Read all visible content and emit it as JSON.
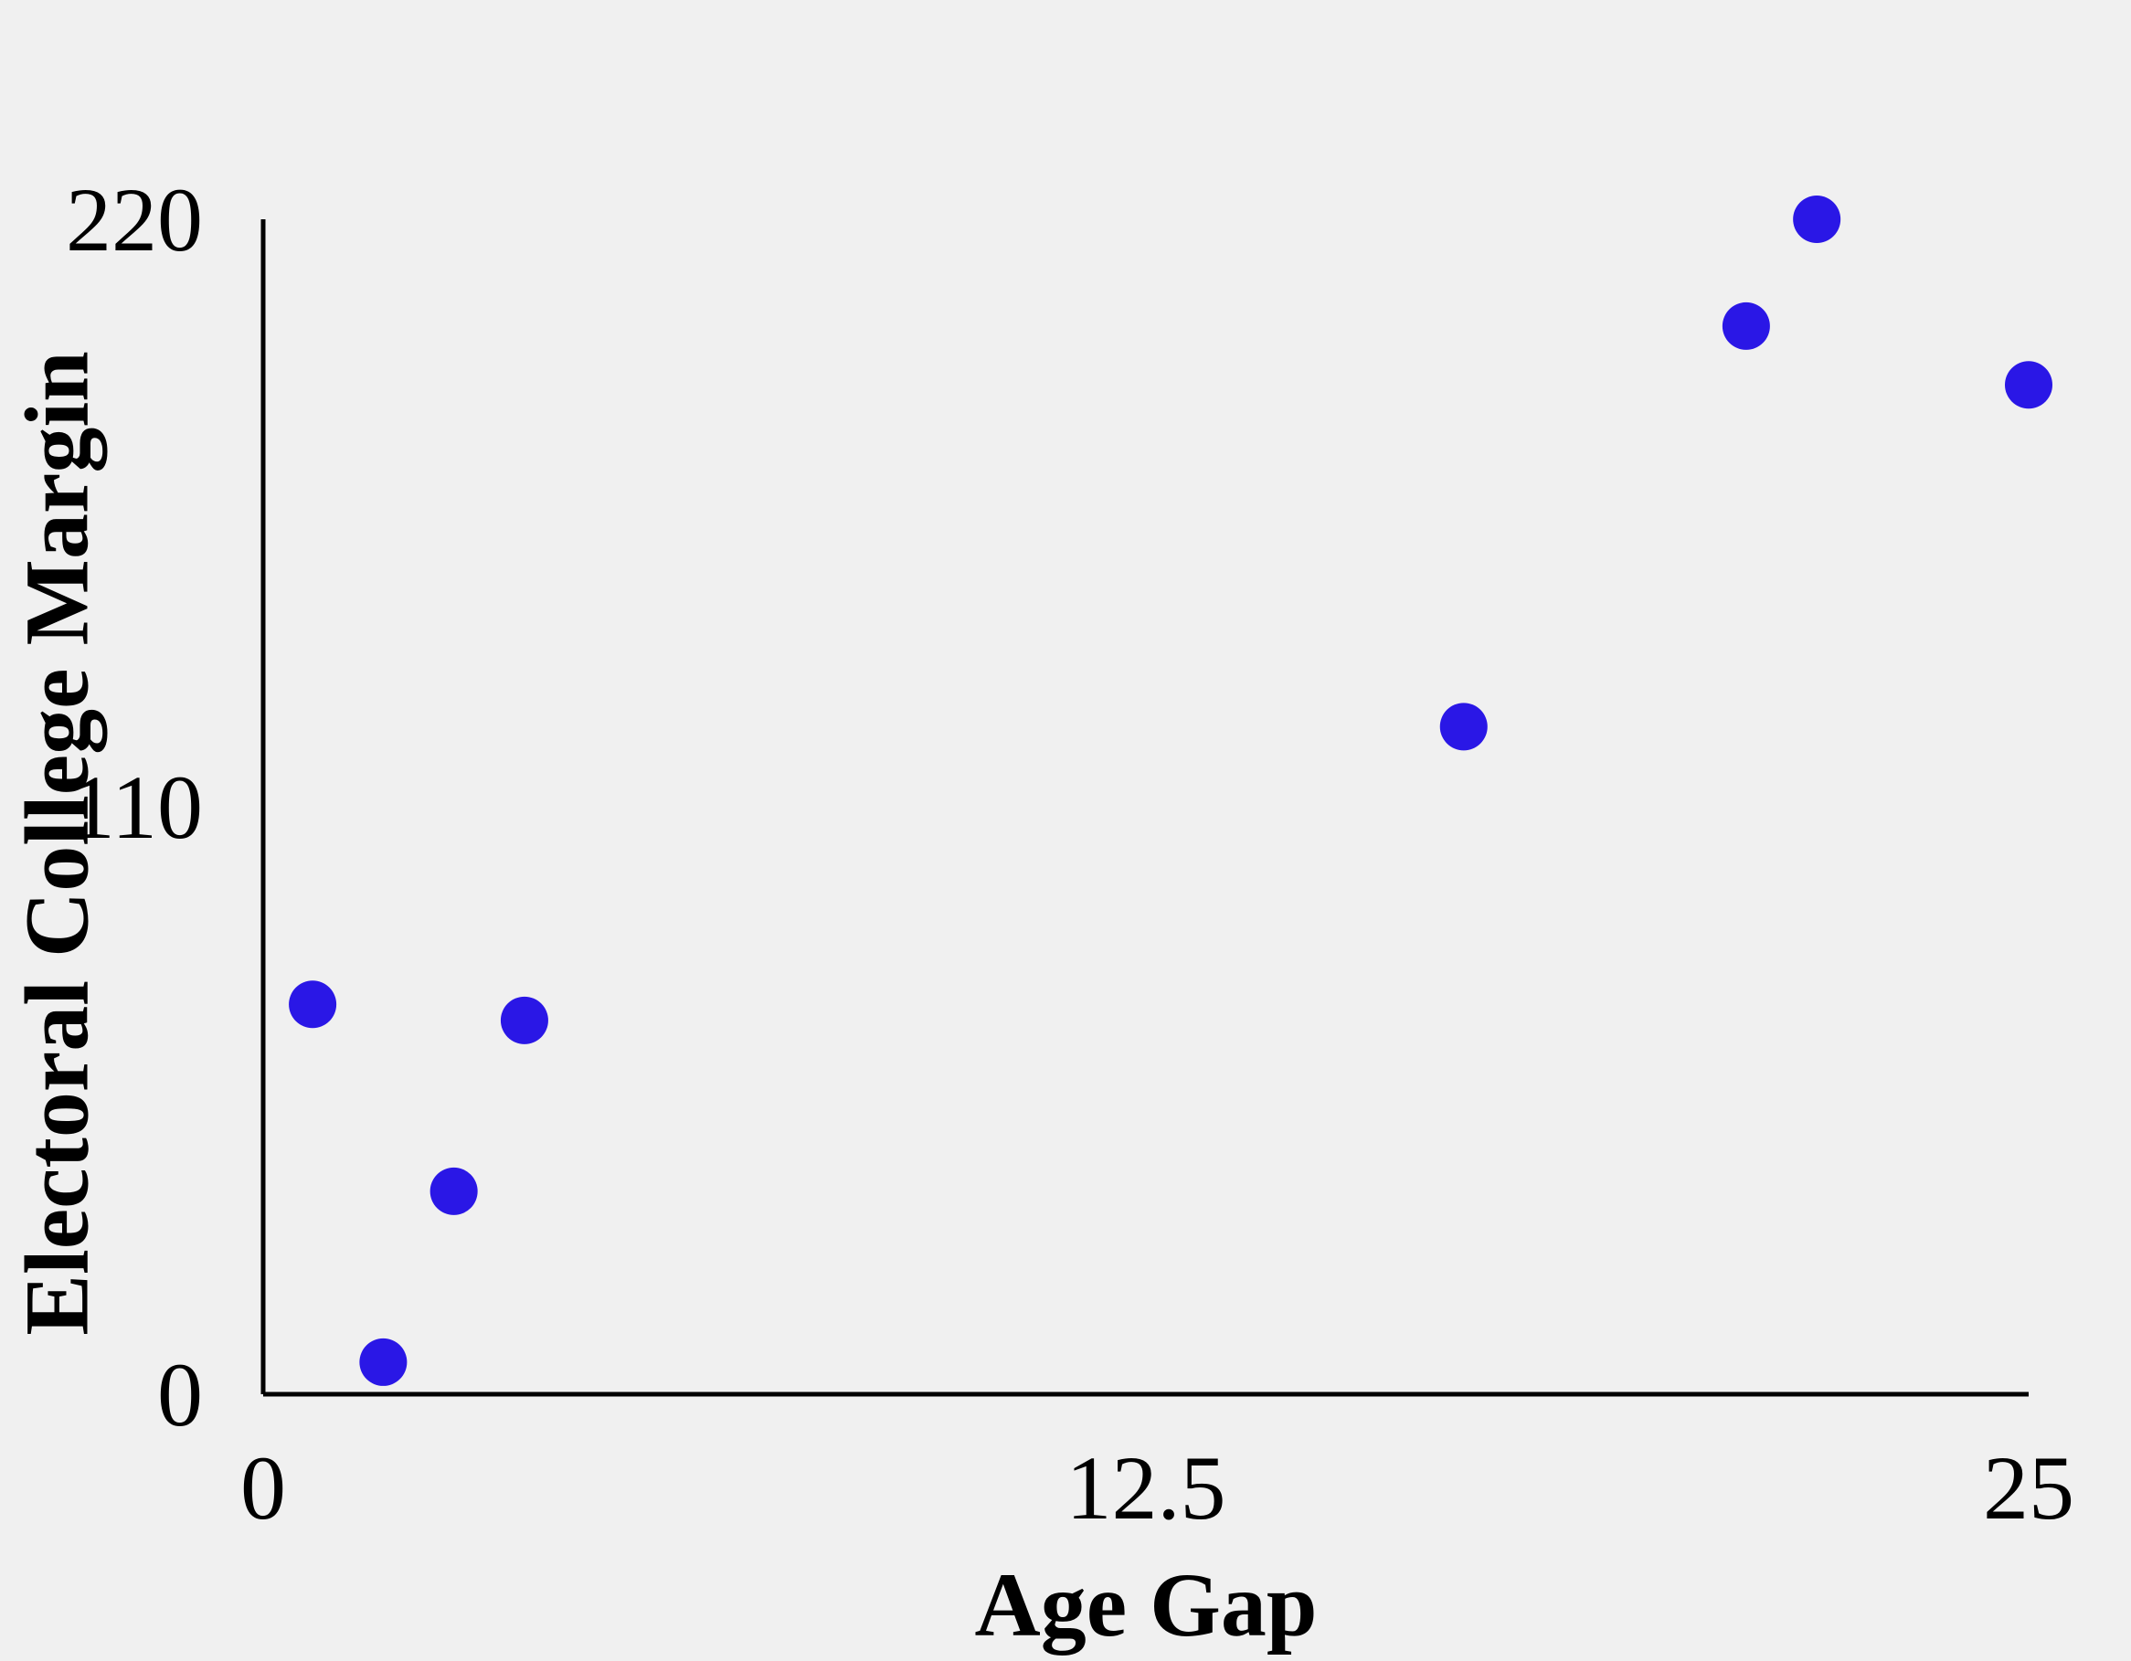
{
  "chart_data": {
    "type": "scatter",
    "title": "",
    "xlabel": "Age Gap",
    "ylabel": "Electoral College Margin",
    "xlim": [
      0,
      25
    ],
    "ylim": [
      0,
      220
    ],
    "xticks": [
      "0",
      "12.5",
      "25"
    ],
    "yticks": [
      "0",
      "110",
      "220"
    ],
    "grid": false,
    "legend": "none",
    "point_color": "#2a17e6",
    "points": [
      {
        "x": 0.7,
        "y": 73
      },
      {
        "x": 1.7,
        "y": 6
      },
      {
        "x": 2.7,
        "y": 38
      },
      {
        "x": 3.7,
        "y": 70
      },
      {
        "x": 17.0,
        "y": 125
      },
      {
        "x": 21.0,
        "y": 200
      },
      {
        "x": 22.0,
        "y": 220
      },
      {
        "x": 25.0,
        "y": 189
      }
    ]
  }
}
